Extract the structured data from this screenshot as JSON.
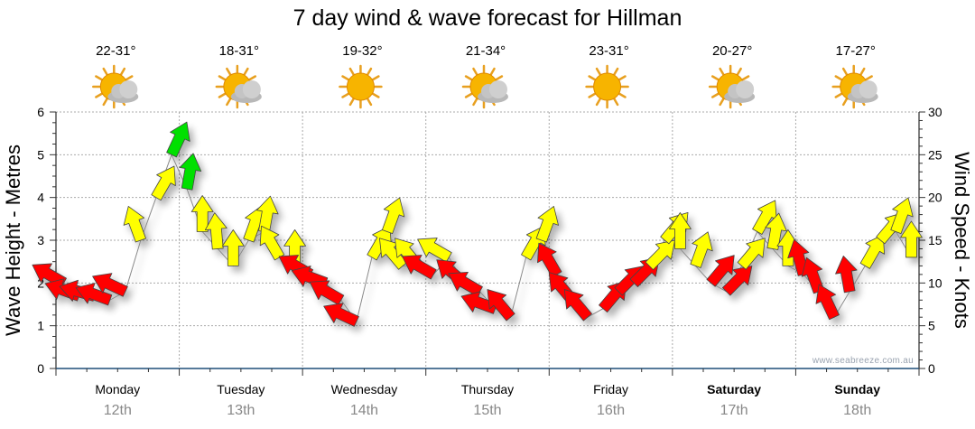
{
  "chart_data": {
    "type": "scatter",
    "title": "7 day wind & wave forecast for Hillman",
    "ylabel_left": "Wave Height - Metres",
    "ylabel_right": "Wind Speed - Knots",
    "ylim_left": [
      0,
      6
    ],
    "ylim_right": [
      0,
      30
    ],
    "yticks_left": [
      "0",
      "1",
      "2",
      "3",
      "4",
      "5",
      "6"
    ],
    "yticks_right": [
      "0",
      "5",
      "10",
      "15",
      "20",
      "25",
      "30"
    ],
    "grid": true,
    "watermark": "www.seabreeze.com.au",
    "days": [
      {
        "name": "Monday",
        "date": "12th",
        "temp": "22-31°",
        "icon": "sun-cloud-icon",
        "bold": false
      },
      {
        "name": "Tuesday",
        "date": "13th",
        "temp": "18-31°",
        "icon": "sun-cloud-icon",
        "bold": false
      },
      {
        "name": "Wednesday",
        "date": "14th",
        "temp": "19-32°",
        "icon": "sun-icon",
        "bold": false
      },
      {
        "name": "Thursday",
        "date": "15th",
        "temp": "21-34°",
        "icon": "sun-cloud-icon",
        "bold": false
      },
      {
        "name": "Friday",
        "date": "16th",
        "temp": "23-31°",
        "icon": "sun-icon",
        "bold": false
      },
      {
        "name": "Saturday",
        "date": "17th",
        "temp": "20-27°",
        "icon": "sun-cloud-icon",
        "bold": true
      },
      {
        "name": "Sunday",
        "date": "18th",
        "temp": "17-27°",
        "icon": "sun-cloud-icon",
        "bold": true
      }
    ],
    "points_per_day": 8,
    "wind_knots": [
      10,
      8.5,
      8.5,
      8,
      9,
      15,
      20,
      25,
      21,
      16,
      14,
      12,
      15,
      16,
      13,
      12,
      11,
      10,
      8,
      5.5,
      13,
      16,
      12,
      12,
      11,
      13,
      10,
      9,
      7,
      6,
      13,
      15,
      11,
      8,
      6,
      7,
      9,
      10,
      12,
      15,
      14,
      12,
      10,
      9,
      12,
      16,
      14,
      12,
      11,
      9,
      6,
      9,
      12,
      15,
      16,
      13
    ],
    "wind_direction_deg": [
      300,
      290,
      285,
      290,
      295,
      340,
      30,
      25,
      10,
      0,
      355,
      0,
      20,
      10,
      330,
      0,
      300,
      290,
      300,
      295,
      30,
      20,
      320,
      320,
      300,
      300,
      310,
      300,
      290,
      320,
      30,
      20,
      330,
      320,
      320,
      40,
      45,
      45,
      45,
      40,
      0,
      20,
      40,
      45,
      40,
      30,
      10,
      0,
      345,
      340,
      335,
      350,
      30,
      40,
      20,
      0
    ],
    "color_thresholds_knots": {
      "red_below": 12,
      "green_above": 20
    },
    "colors": {
      "red": "#ff0000",
      "yellow": "#ffff00",
      "green": "#00e000",
      "grid": "#aaaaaa",
      "axis": "#1f4e79",
      "date": "#888888",
      "watermark": "#9aa3b0"
    }
  }
}
